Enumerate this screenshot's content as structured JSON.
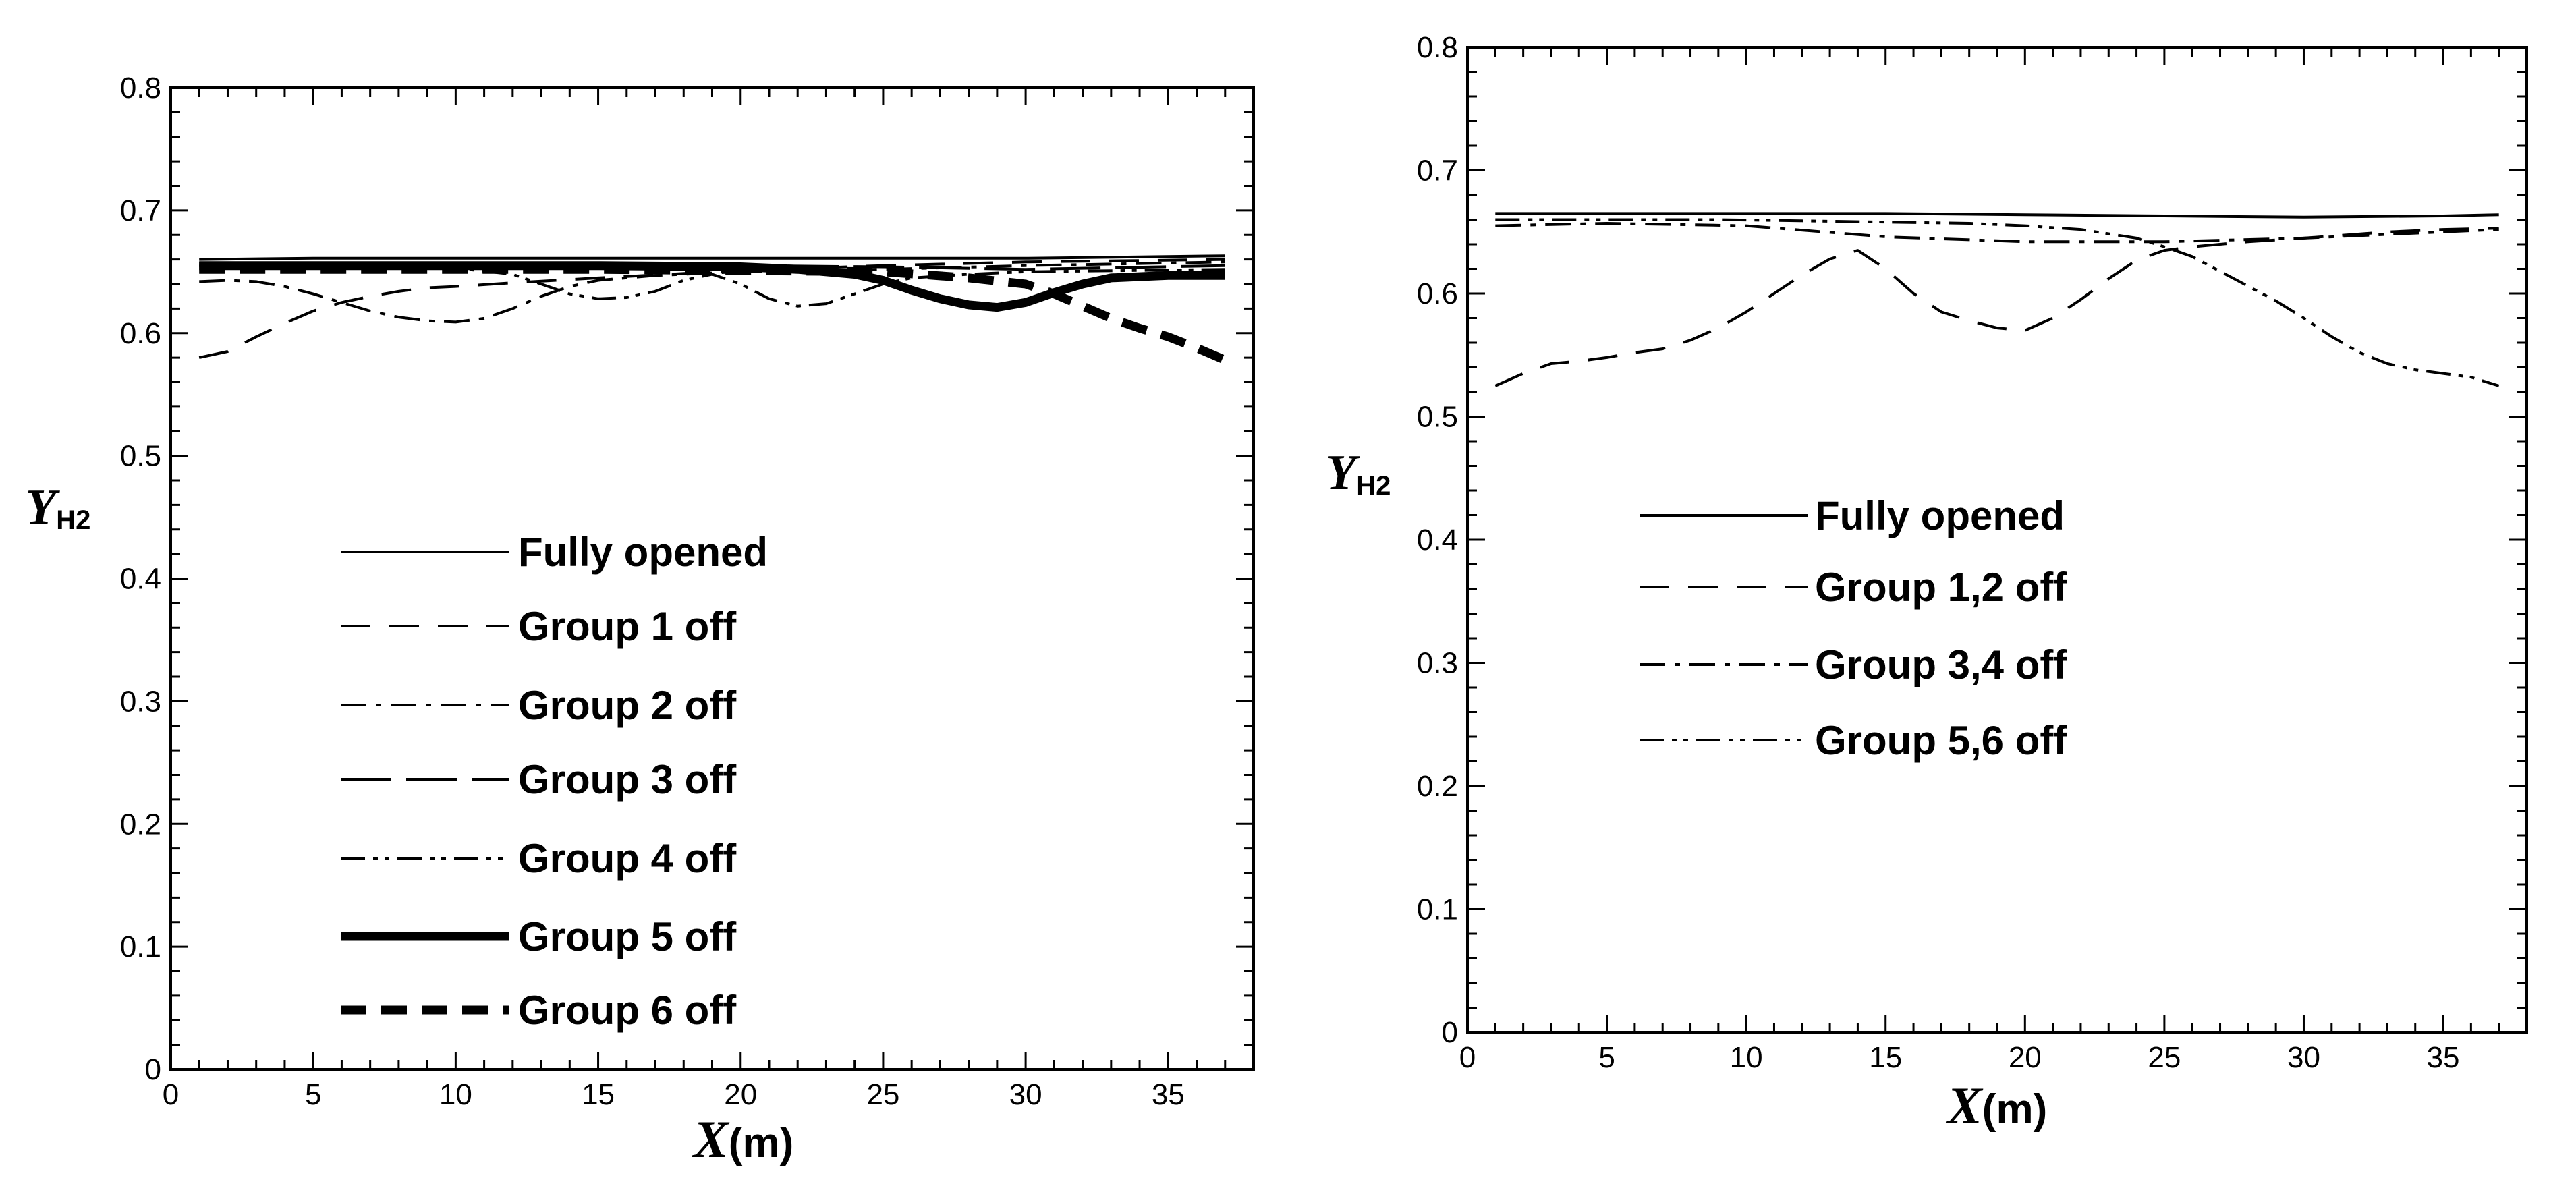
{
  "chart_data": [
    {
      "type": "line",
      "xlabel": "X",
      "xlabel_unit": "(m)",
      "ylabel": "Y",
      "ylabel_sub": "H2",
      "xlim": [
        0,
        38
      ],
      "ylim": [
        0,
        0.8
      ],
      "xticks": [
        "0",
        "5",
        "10",
        "15",
        "20",
        "25",
        "30",
        "35"
      ],
      "yticks": [
        "0",
        "0.1",
        "0.2",
        "0.3",
        "0.4",
        "0.5",
        "0.6",
        "0.7",
        "0.8"
      ],
      "legend_position": "lower-left",
      "series": [
        {
          "name": "Fully opened",
          "style": "solid",
          "x": [
            1,
            5,
            10,
            15,
            20,
            25,
            30,
            37
          ],
          "y": [
            0.66,
            0.661,
            0.661,
            0.661,
            0.661,
            0.661,
            0.661,
            0.663
          ]
        },
        {
          "name": "Group 1 off",
          "style": "dash",
          "x": [
            1,
            2,
            3,
            4,
            5,
            6,
            7,
            8,
            9,
            10,
            12,
            15,
            20,
            25,
            30,
            37
          ],
          "y": [
            0.58,
            0.585,
            0.597,
            0.608,
            0.618,
            0.625,
            0.63,
            0.634,
            0.637,
            0.638,
            0.641,
            0.645,
            0.651,
            0.655,
            0.658,
            0.66
          ]
        },
        {
          "name": "Group 2 off",
          "style": "dashdot",
          "x": [
            1,
            2,
            3,
            4,
            5,
            6,
            7,
            8,
            9,
            10,
            11,
            12,
            13,
            14,
            15,
            17,
            20,
            25,
            30,
            37
          ],
          "y": [
            0.642,
            0.643,
            0.642,
            0.638,
            0.632,
            0.625,
            0.618,
            0.613,
            0.61,
            0.609,
            0.612,
            0.62,
            0.63,
            0.638,
            0.643,
            0.647,
            0.65,
            0.652,
            0.655,
            0.658
          ]
        },
        {
          "name": "Group 3 off",
          "style": "longdash",
          "x": [
            1,
            5,
            10,
            15,
            20,
            25,
            30,
            37
          ],
          "y": [
            0.657,
            0.657,
            0.656,
            0.656,
            0.655,
            0.654,
            0.652,
            0.655
          ]
        },
        {
          "name": "Group 4 off",
          "style": "dashdotdot",
          "x": [
            1,
            3,
            6,
            9,
            10,
            12,
            13,
            14,
            15,
            16,
            17,
            18,
            19,
            20,
            21,
            22,
            23,
            24,
            25,
            26,
            28,
            30,
            37
          ],
          "y": [
            0.655,
            0.656,
            0.656,
            0.655,
            0.653,
            0.648,
            0.64,
            0.632,
            0.628,
            0.629,
            0.634,
            0.643,
            0.648,
            0.64,
            0.628,
            0.622,
            0.624,
            0.632,
            0.64,
            0.645,
            0.648,
            0.65,
            0.652
          ]
        },
        {
          "name": "Group 5 off",
          "style": "thick-solid",
          "x": [
            1,
            5,
            10,
            15,
            20,
            22,
            24,
            25,
            26,
            27,
            28,
            29,
            30,
            31,
            32,
            33,
            35,
            37
          ],
          "y": [
            0.655,
            0.655,
            0.655,
            0.655,
            0.654,
            0.652,
            0.648,
            0.643,
            0.635,
            0.628,
            0.623,
            0.621,
            0.625,
            0.633,
            0.64,
            0.645,
            0.647,
            0.647
          ]
        },
        {
          "name": "Group 6 off",
          "style": "thick-dash",
          "x": [
            1,
            5,
            10,
            15,
            20,
            25,
            28,
            30,
            31,
            32,
            33,
            34,
            35,
            36,
            37
          ],
          "y": [
            0.652,
            0.652,
            0.652,
            0.652,
            0.651,
            0.65,
            0.645,
            0.64,
            0.632,
            0.622,
            0.612,
            0.604,
            0.597,
            0.588,
            0.578
          ]
        }
      ]
    },
    {
      "type": "line",
      "xlabel": "X",
      "xlabel_unit": "(m)",
      "ylabel": "Y",
      "ylabel_sub": "H2",
      "xlim": [
        0,
        38
      ],
      "ylim": [
        0,
        0.8
      ],
      "xticks": [
        "0",
        "5",
        "10",
        "15",
        "20",
        "25",
        "30",
        "35"
      ],
      "yticks": [
        "0",
        "0.1",
        "0.2",
        "0.3",
        "0.4",
        "0.5",
        "0.6",
        "0.7",
        "0.8"
      ],
      "legend_position": "center-left",
      "series": [
        {
          "name": "Fully opened",
          "style": "solid",
          "x": [
            1,
            5,
            10,
            15,
            20,
            25,
            30,
            35,
            37
          ],
          "y": [
            0.665,
            0.665,
            0.665,
            0.665,
            0.664,
            0.663,
            0.662,
            0.663,
            0.664
          ]
        },
        {
          "name": "Group 1,2 off",
          "style": "dash",
          "x": [
            1,
            2,
            3,
            4,
            5,
            6,
            7,
            8,
            9,
            10,
            11,
            12,
            13,
            14,
            15,
            16,
            17,
            18,
            19,
            20,
            21,
            22,
            23,
            24,
            25,
            26,
            28,
            30,
            33,
            35,
            37
          ],
          "y": [
            0.525,
            0.535,
            0.543,
            0.545,
            0.548,
            0.552,
            0.555,
            0.562,
            0.572,
            0.585,
            0.6,
            0.615,
            0.628,
            0.635,
            0.62,
            0.6,
            0.585,
            0.578,
            0.572,
            0.57,
            0.58,
            0.595,
            0.612,
            0.627,
            0.635,
            0.638,
            0.642,
            0.645,
            0.65,
            0.652,
            0.653
          ]
        },
        {
          "name": "Group 3,4 off",
          "style": "dashdot",
          "x": [
            1,
            5,
            10,
            15,
            20,
            25,
            30,
            35,
            37
          ],
          "y": [
            0.655,
            0.657,
            0.655,
            0.646,
            0.642,
            0.642,
            0.645,
            0.65,
            0.652
          ]
        },
        {
          "name": "Group 5,6 off",
          "style": "dashdotdot",
          "x": [
            1,
            3,
            6,
            9,
            12,
            15,
            18,
            20,
            22,
            24,
            25,
            26,
            27,
            28,
            29,
            30,
            31,
            32,
            33,
            34,
            35,
            36,
            37
          ],
          "y": [
            0.66,
            0.66,
            0.66,
            0.66,
            0.659,
            0.658,
            0.657,
            0.655,
            0.652,
            0.645,
            0.638,
            0.63,
            0.618,
            0.606,
            0.594,
            0.58,
            0.565,
            0.552,
            0.543,
            0.538,
            0.535,
            0.532,
            0.525
          ]
        }
      ]
    }
  ]
}
